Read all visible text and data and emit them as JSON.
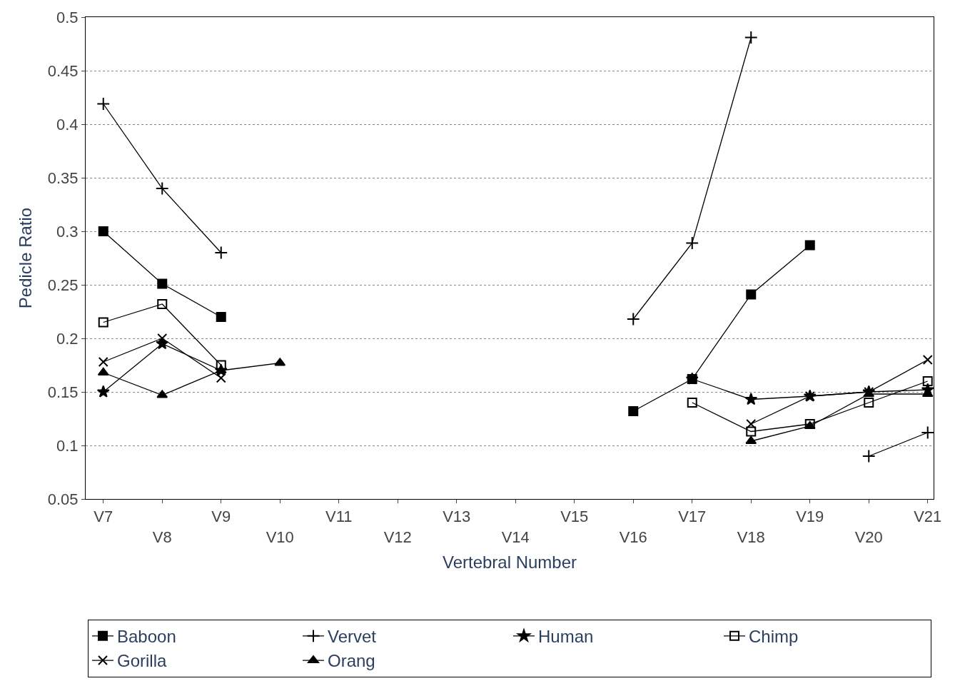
{
  "chart_data": {
    "type": "line",
    "xlabel": "Vertebral Number",
    "ylabel": "Pedicle Ratio",
    "categories": [
      "V7",
      "V8",
      "V9",
      "V10",
      "V11",
      "V12",
      "V13",
      "V14",
      "V15",
      "V16",
      "V17",
      "V18",
      "V19",
      "V20",
      "V21"
    ],
    "series": [
      {
        "name": "Baboon",
        "color": "#000000",
        "marker": "square",
        "values": [
          0.3,
          0.251,
          0.22,
          null,
          null,
          null,
          null,
          null,
          null,
          0.132,
          0.162,
          0.241,
          0.287,
          null,
          null
        ]
      },
      {
        "name": "Vervet",
        "color": "#000000",
        "marker": "cross",
        "values": [
          0.419,
          0.34,
          0.28,
          null,
          null,
          null,
          null,
          null,
          null,
          0.218,
          0.289,
          0.481,
          null,
          0.09,
          0.112
        ]
      },
      {
        "name": "Human",
        "color": "#000000",
        "marker": "star",
        "values": [
          0.15,
          0.195,
          0.17,
          null,
          null,
          null,
          null,
          null,
          null,
          null,
          0.162,
          0.143,
          0.146,
          0.15,
          0.152
        ]
      },
      {
        "name": "Chimp",
        "color": "#000000",
        "marker": "square-open",
        "values": [
          0.215,
          0.232,
          0.175,
          null,
          null,
          null,
          null,
          null,
          null,
          null,
          0.14,
          0.113,
          0.12,
          0.14,
          0.16
        ]
      },
      {
        "name": "Gorilla",
        "color": "#000000",
        "marker": "x",
        "values": [
          0.178,
          0.2,
          0.163,
          null,
          null,
          null,
          null,
          null,
          null,
          null,
          null,
          0.12,
          0.146,
          0.15,
          0.18
        ]
      },
      {
        "name": "Orang",
        "color": "#000000",
        "marker": "triangle",
        "values": [
          0.168,
          0.147,
          0.17,
          0.177,
          null,
          null,
          null,
          null,
          null,
          null,
          null,
          0.104,
          0.118,
          0.148,
          0.148
        ]
      }
    ],
    "ylim": [
      0.05,
      0.5
    ],
    "yticks": [
      0.05,
      0.1,
      0.15,
      0.2,
      0.25,
      0.3,
      0.35,
      0.4,
      0.45,
      0.5
    ],
    "grid": "y",
    "legend": "bottom"
  }
}
